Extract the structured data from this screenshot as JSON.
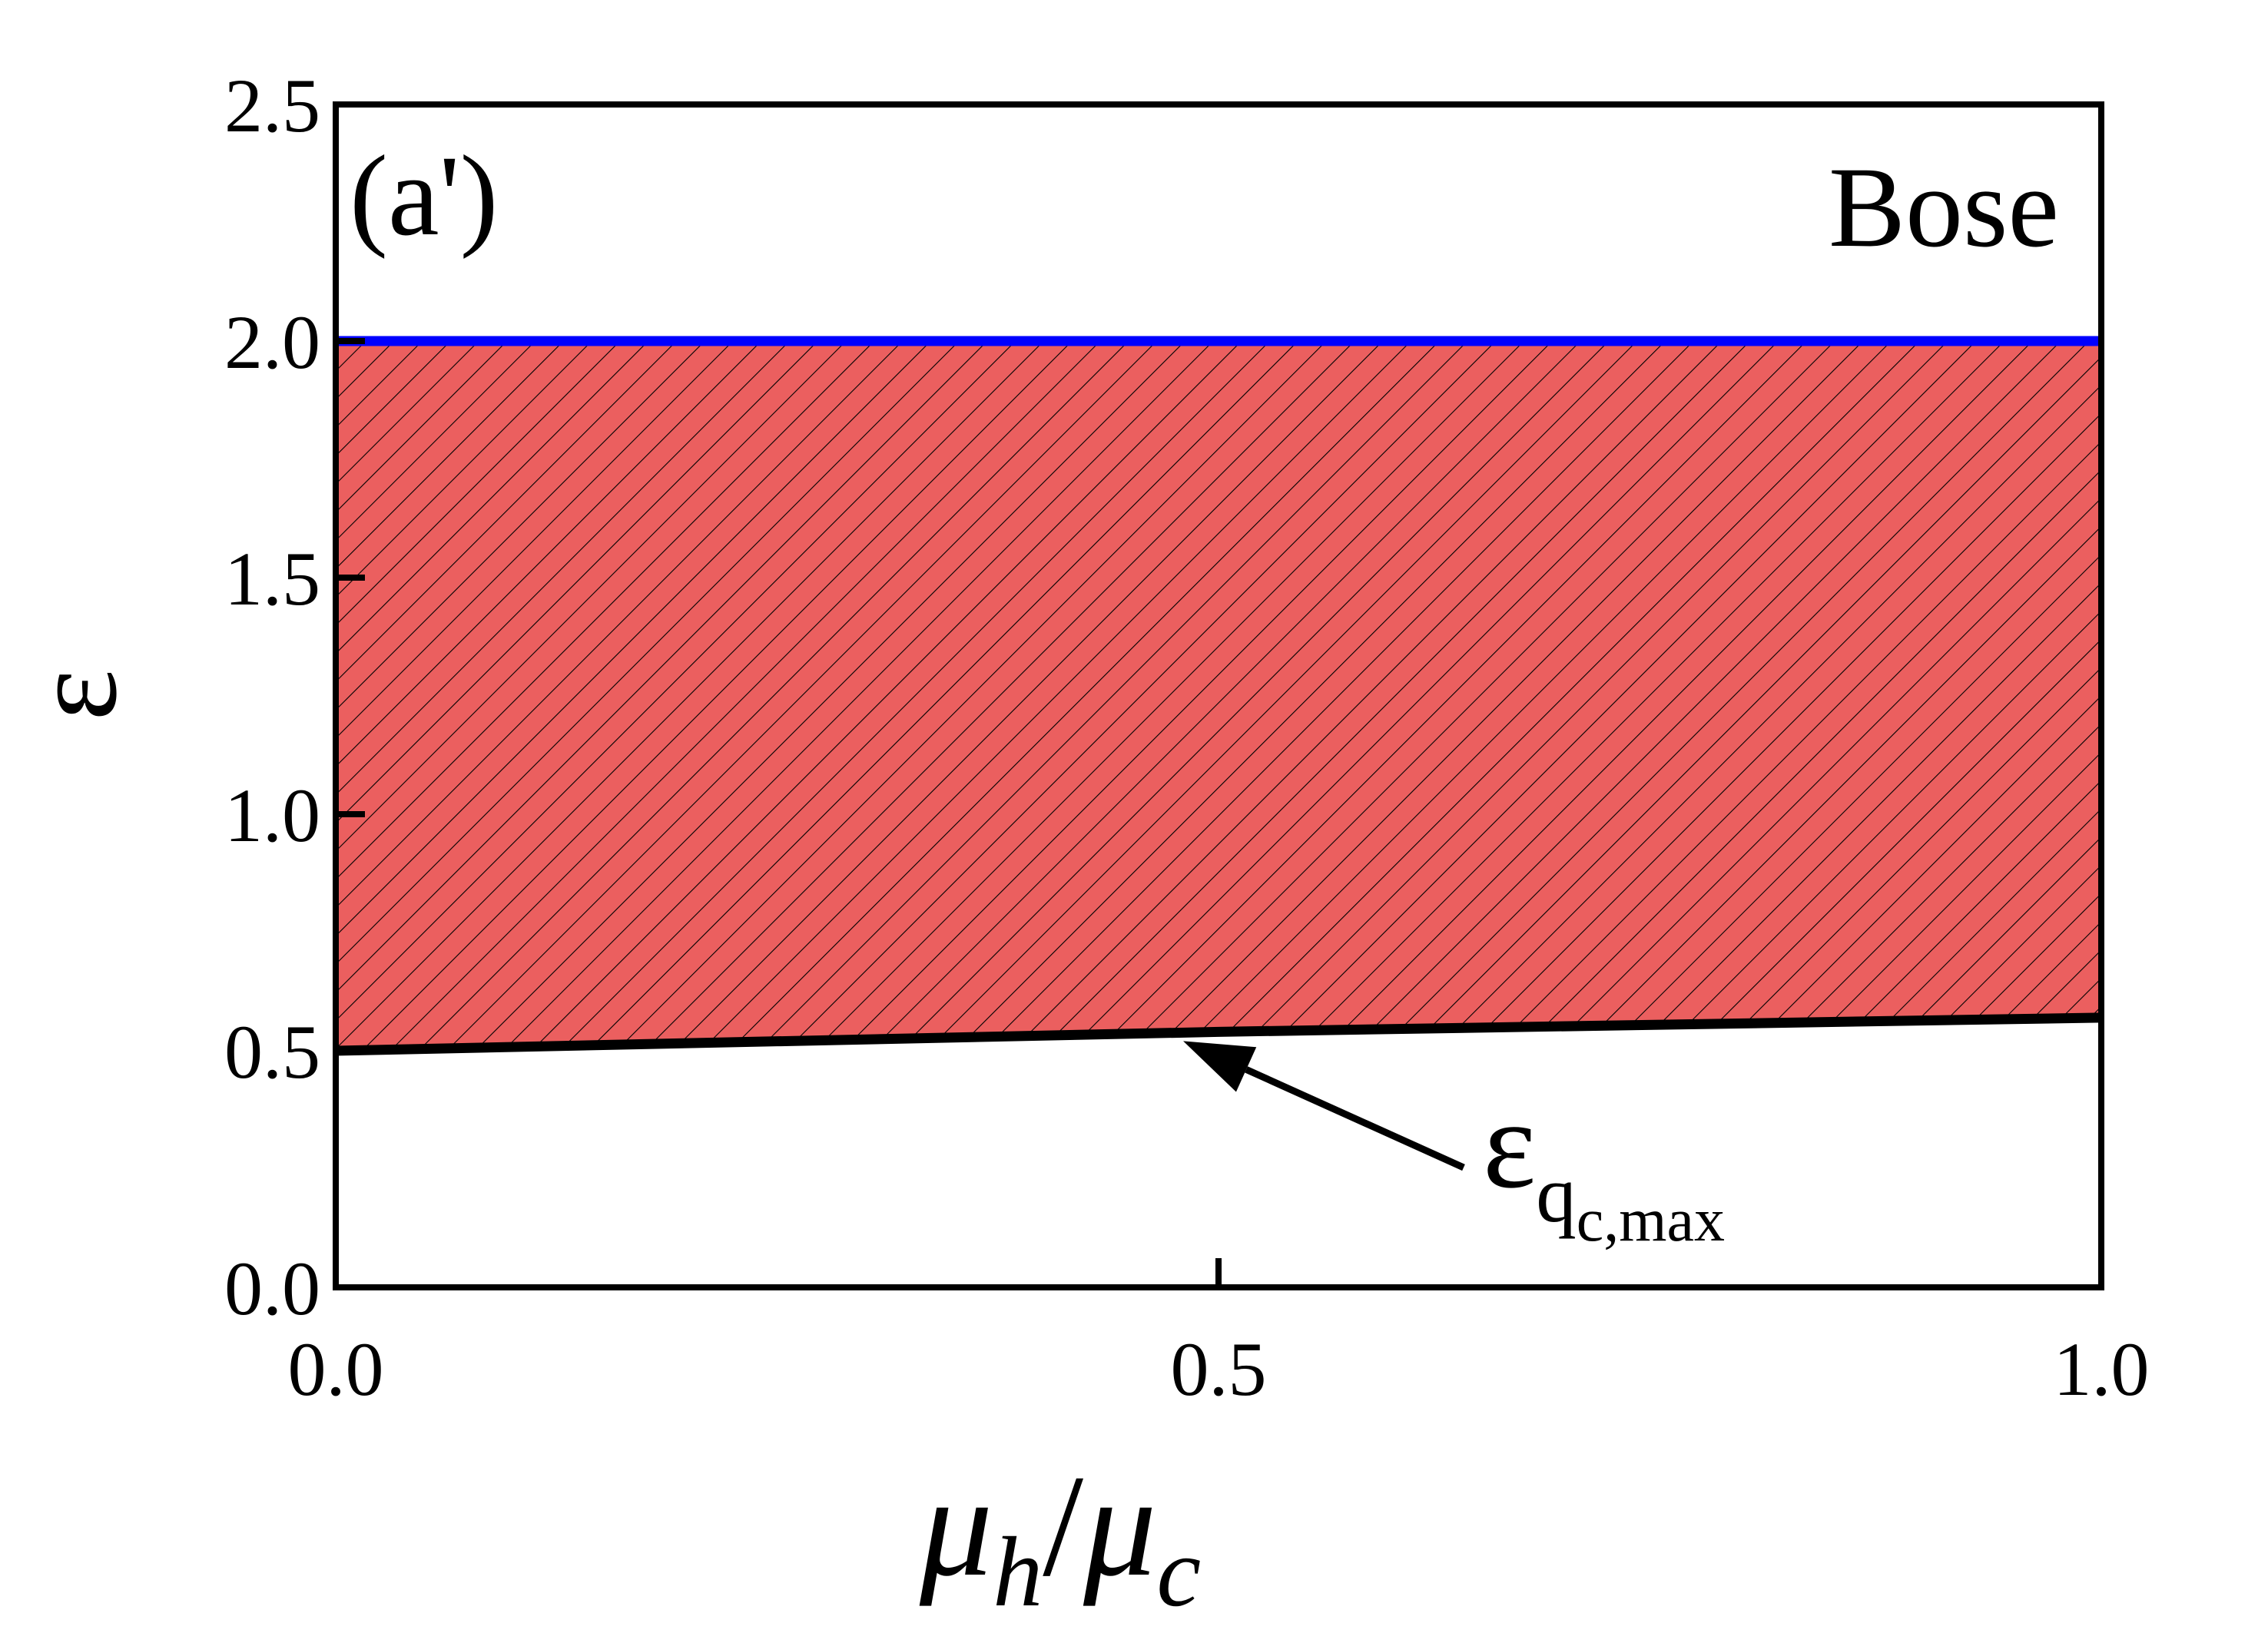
{
  "chart_data": {
    "type": "area",
    "panel_label": "(a')",
    "statistics_label": "Bose",
    "xlabel": {
      "main": "μ",
      "sub1": "h",
      "sep": "/",
      "main2": "μ",
      "sub2": "c"
    },
    "ylabel": "ε",
    "xlim": [
      0.0,
      1.0
    ],
    "ylim": [
      0.0,
      2.5
    ],
    "xticks": [
      0.0,
      0.5,
      1.0
    ],
    "xtick_labels": [
      "0.0",
      "0.5",
      "1.0"
    ],
    "yticks": [
      0.0,
      0.5,
      1.0,
      1.5,
      2.0,
      2.5
    ],
    "ytick_labels": [
      "0.0",
      "0.5",
      "1.0",
      "1.5",
      "2.0",
      "2.5"
    ],
    "grid": false,
    "series": [
      {
        "name": "",
        "role": "upper-bound",
        "color": "#0000ff",
        "x": [
          0.0,
          1.0
        ],
        "y": [
          2.0,
          2.0
        ]
      },
      {
        "name": "",
        "role": "lower-bound",
        "color": "#000000",
        "x": [
          0.0,
          0.25,
          0.5,
          0.75,
          1.0
        ],
        "y": [
          0.5,
          0.52,
          0.54,
          0.555,
          0.57
        ]
      }
    ],
    "shaded_region": {
      "fill": "#eb5f5f",
      "hatch": "diagonal",
      "between": [
        "lower-bound",
        "upper-bound"
      ]
    },
    "annotation": {
      "main": "ε",
      "sub": "q",
      "subsub": "c,max",
      "points_to": {
        "x": 0.48,
        "y": 0.54
      }
    }
  }
}
